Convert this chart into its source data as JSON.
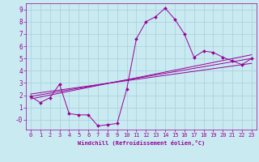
{
  "xlabel": "Windchill (Refroidissement éolien,°C)",
  "bg_color": "#c8eaf0",
  "line_color": "#990099",
  "grid_color": "#a8d0dc",
  "xlim": [
    -0.5,
    23.5
  ],
  "ylim": [
    -0.8,
    9.5
  ],
  "ytick_vals": [
    0,
    1,
    2,
    3,
    4,
    5,
    6,
    7,
    8,
    9
  ],
  "ytick_labels": [
    "-0",
    "1",
    "2",
    "3",
    "4",
    "5",
    "6",
    "7",
    "8",
    "9"
  ],
  "xtick_vals": [
    0,
    1,
    2,
    3,
    4,
    5,
    6,
    7,
    8,
    9,
    10,
    11,
    12,
    13,
    14,
    15,
    16,
    17,
    18,
    19,
    20,
    21,
    22,
    23
  ],
  "series1_x": [
    0,
    1,
    2,
    3,
    4,
    5,
    6,
    7,
    8,
    9,
    10,
    11,
    12,
    13,
    14,
    15,
    16,
    17,
    18,
    19,
    20,
    21,
    22,
    23
  ],
  "series1_y": [
    1.9,
    1.4,
    1.8,
    2.9,
    0.5,
    0.4,
    0.4,
    -0.5,
    -0.4,
    -0.3,
    2.5,
    6.6,
    8.0,
    8.4,
    9.1,
    8.2,
    7.0,
    5.1,
    5.6,
    5.5,
    5.1,
    4.8,
    4.5,
    5.0
  ],
  "series2_x": [
    0,
    23
  ],
  "series2_y": [
    1.9,
    5.0
  ],
  "series3_x": [
    0,
    23
  ],
  "series3_y": [
    2.1,
    4.6
  ],
  "series4_x": [
    0,
    23
  ],
  "series4_y": [
    1.7,
    5.3
  ]
}
